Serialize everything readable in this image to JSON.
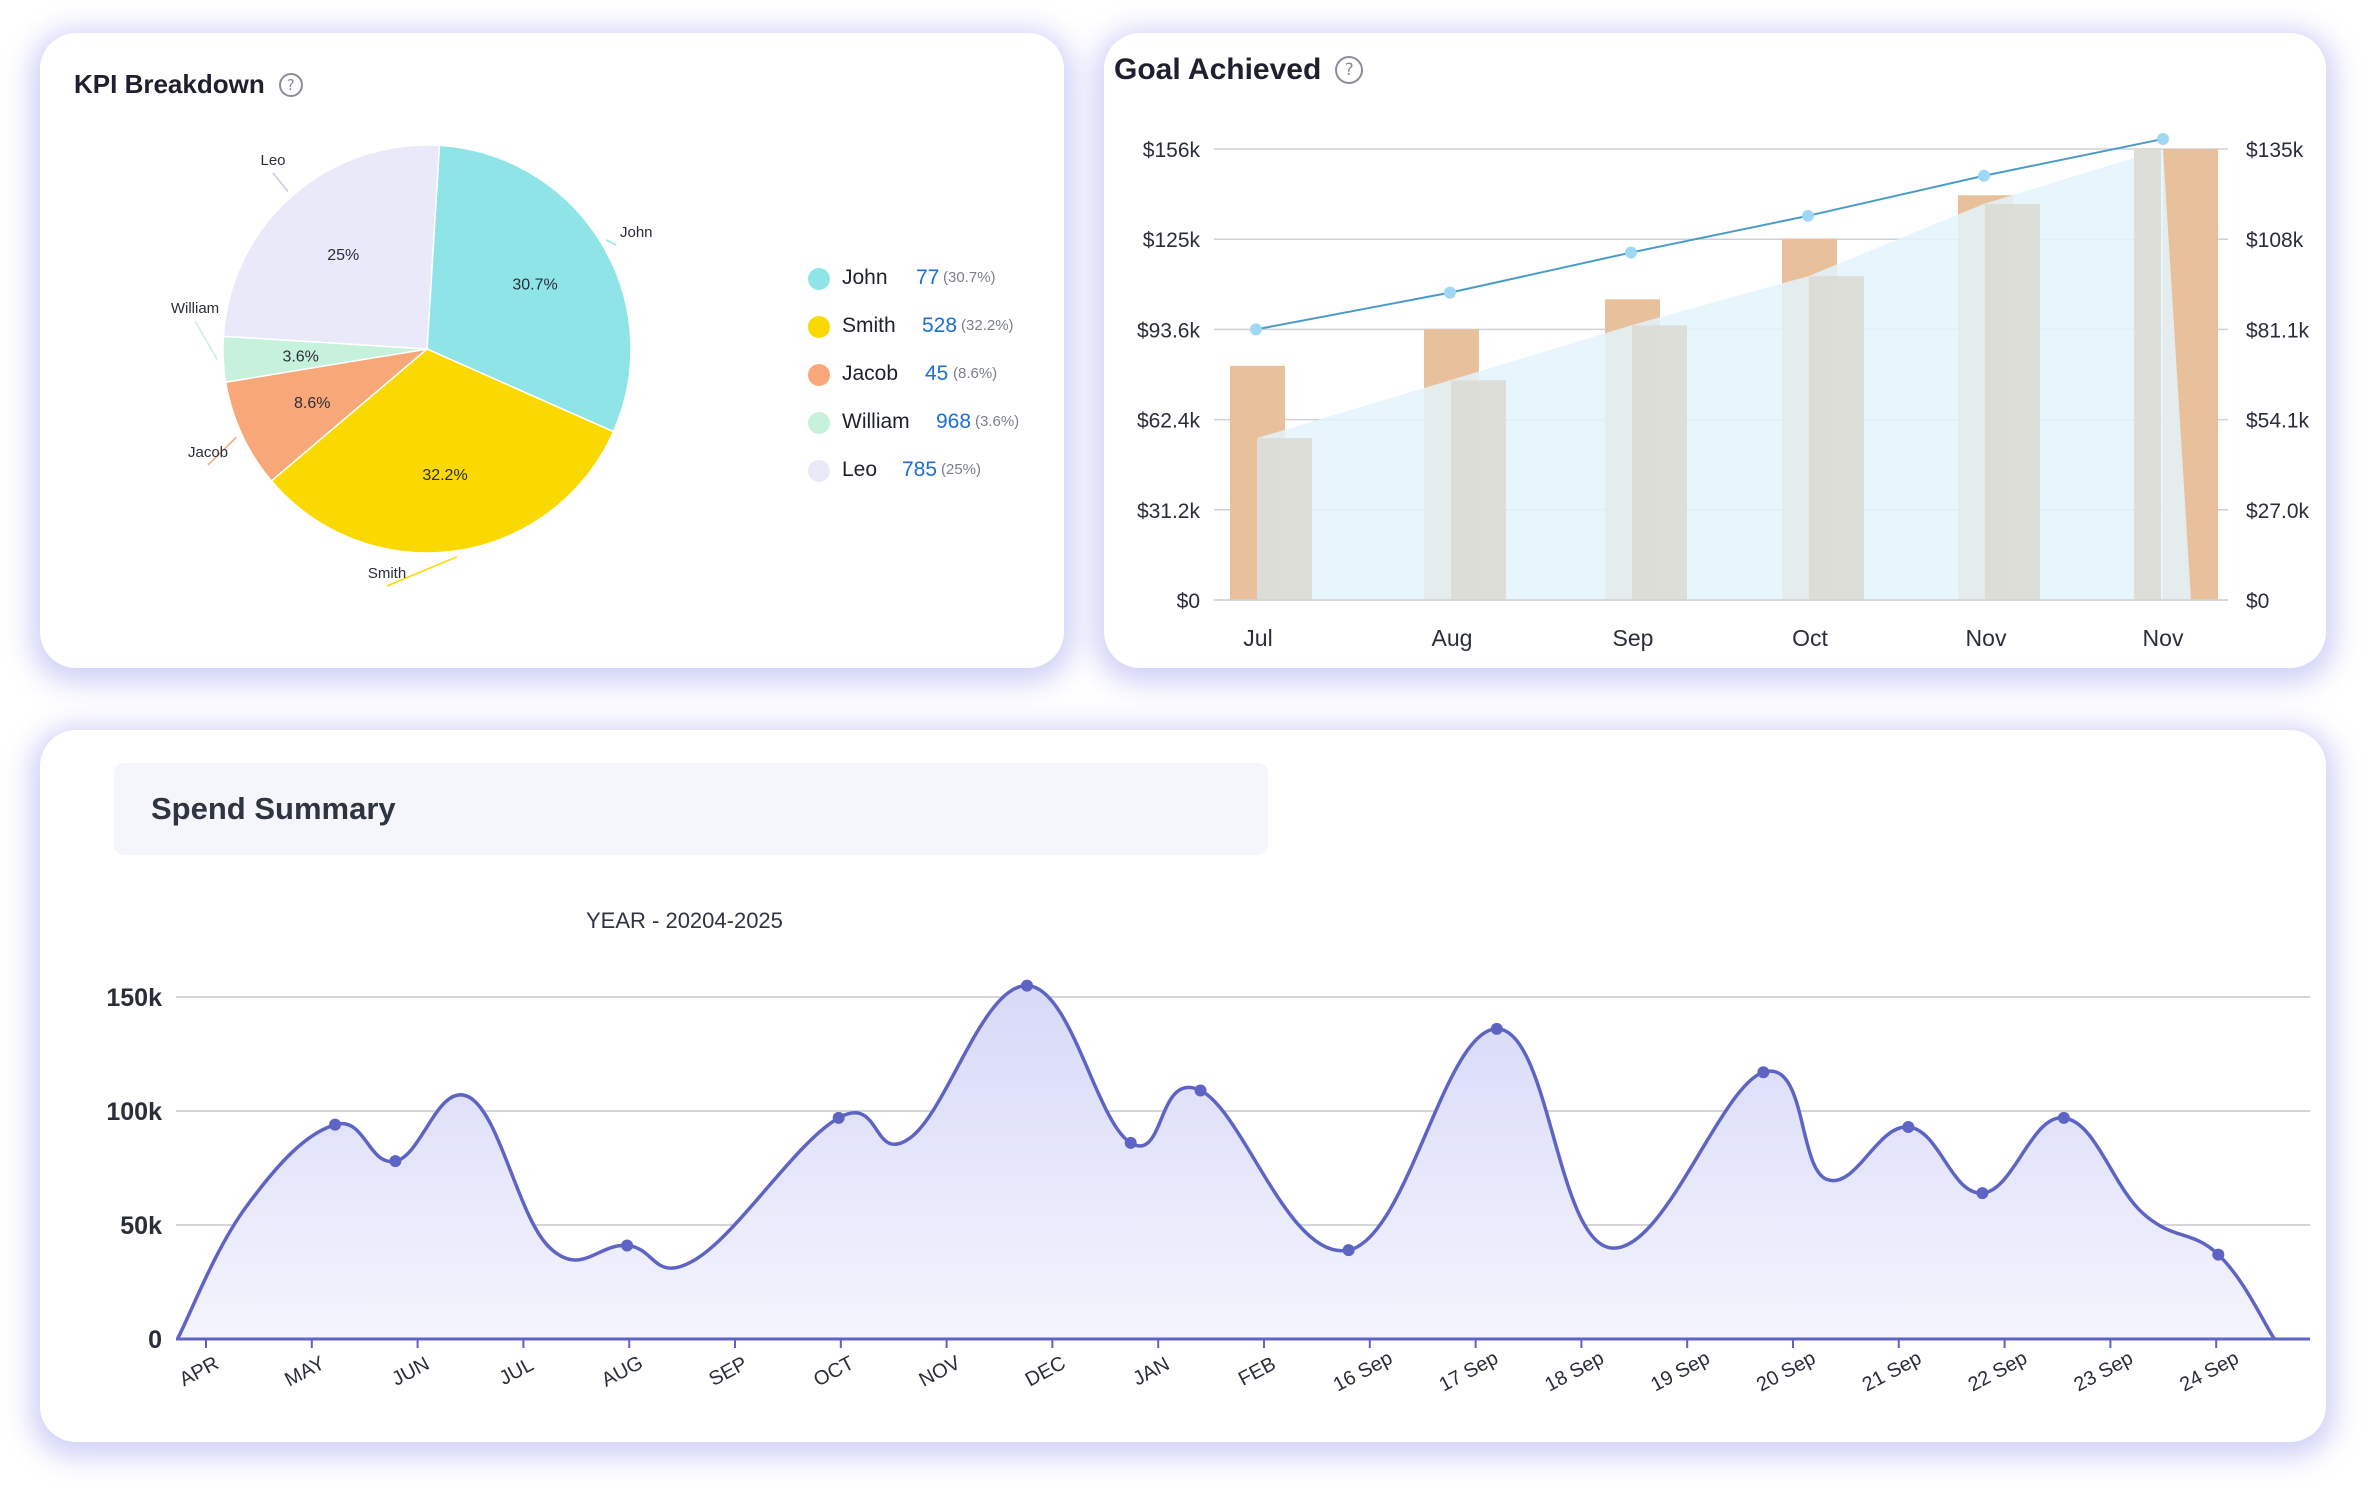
{
  "kpi": {
    "title": "KPI Breakdown",
    "legend": [
      {
        "name": "John",
        "value": "77",
        "pct": "(30.7%)",
        "color": "#8ee4e6"
      },
      {
        "name": "Smith",
        "value": "528",
        "pct": "(32.2%)",
        "color": "#fad900"
      },
      {
        "name": "Jacob",
        "value": "45",
        "pct": "(8.6%)",
        "color": "#f8a878"
      },
      {
        "name": "William",
        "value": "968",
        "pct": "(3.6%)",
        "color": "#c6f1dc"
      },
      {
        "name": "Leo",
        "value": "785",
        "pct": "(25%)",
        "color": "#e9e9f9"
      }
    ]
  },
  "goal": {
    "title": "Goal Achieved"
  },
  "spend": {
    "title": "Spend Summary",
    "subtitle": "YEAR - 20204-2025"
  },
  "chart_data": [
    {
      "type": "pie",
      "title": "KPI Breakdown",
      "slices": [
        {
          "label": "John",
          "value": 30.7,
          "text": "30.7%",
          "color": "#8ee4e6"
        },
        {
          "label": "Smith",
          "value": 32.2,
          "text": "32.2%",
          "color": "#fad900"
        },
        {
          "label": "Jacob",
          "value": 8.6,
          "text": "8.6%",
          "color": "#f8a878"
        },
        {
          "label": "William",
          "value": 3.6,
          "text": "3.6%",
          "color": "#c6f1dc"
        },
        {
          "label": "Leo",
          "value": 25,
          "text": "25%",
          "color": "#e9e9f9"
        }
      ]
    },
    {
      "type": "bar",
      "title": "Goal Achieved",
      "categories": [
        "Jul",
        "Aug",
        "Sep",
        "Oct",
        "Nov",
        "Nov"
      ],
      "y_left_ticks": [
        "$0",
        "$31.2k",
        "$62.4k",
        "$93.6k",
        "$125k",
        "$156k"
      ],
      "y_right_ticks": [
        "$0",
        "$27.0k",
        "$54.1k",
        "$81.1k",
        "$108k",
        "$135k"
      ],
      "ylim_left": [
        0,
        156000
      ],
      "ylim_right": [
        0,
        135000
      ],
      "grid": true,
      "series": [
        {
          "type": "bar",
          "axis": "left",
          "color": "#e8c19c",
          "values": [
            81000,
            93600,
            104000,
            125000,
            140000,
            156000
          ]
        },
        {
          "type": "bar",
          "axis": "left",
          "color": "#dcdcd6",
          "values": [
            56000,
            76000,
            95000,
            112000,
            137000,
            160000
          ]
        },
        {
          "type": "area",
          "axis": "left",
          "color": "#e3f3fc",
          "values": [
            56000,
            76000,
            95000,
            112000,
            137000,
            156000
          ]
        },
        {
          "type": "line",
          "axis": "right",
          "color": "#4a9cc6",
          "marker_color": "#9ed8f4",
          "values": [
            81000,
            92000,
            104000,
            115000,
            127000,
            138000
          ]
        }
      ]
    },
    {
      "type": "area",
      "title": "YEAR - 20204-2025",
      "x": [
        "APR",
        "MAY",
        "JUN",
        "JUL",
        "AUG",
        "SEP",
        "OCT",
        "NOV",
        "DEC",
        "JAN",
        "FEB",
        "16 Sep",
        "17 Sep",
        "18 Sep",
        "19 Sep",
        "20 Sep",
        "21 Sep",
        "22 Sep",
        "23 Sep",
        "24 Sep"
      ],
      "y_ticks": [
        "0",
        "50k",
        "100k",
        "150k"
      ],
      "ylim": [
        0,
        150000
      ],
      "grid": true,
      "series": [
        {
          "color": "#5e64c4",
          "curve": [
            {
              "x": -0.27,
              "y": 0
            },
            {
              "x": 0.38,
              "y": 58000
            },
            {
              "x": 1.22,
              "y": 94000
            },
            {
              "x": 1.79,
              "y": 78000
            },
            {
              "x": 2.49,
              "y": 106000
            },
            {
              "x": 3.25,
              "y": 40000
            },
            {
              "x": 3.98,
              "y": 41000
            },
            {
              "x": 4.63,
              "y": 35000
            },
            {
              "x": 5.98,
              "y": 97000
            },
            {
              "x": 6.65,
              "y": 88000
            },
            {
              "x": 7.76,
              "y": 155000
            },
            {
              "x": 8.74,
              "y": 86000
            },
            {
              "x": 9.4,
              "y": 109000
            },
            {
              "x": 10.8,
              "y": 39000
            },
            {
              "x": 12.2,
              "y": 136000
            },
            {
              "x": 13.27,
              "y": 40000
            },
            {
              "x": 14.72,
              "y": 117000
            },
            {
              "x": 15.32,
              "y": 70000
            },
            {
              "x": 16.09,
              "y": 93000
            },
            {
              "x": 16.79,
              "y": 64000
            },
            {
              "x": 17.56,
              "y": 97000
            },
            {
              "x": 18.31,
              "y": 55000
            },
            {
              "x": 19.02,
              "y": 37000
            },
            {
              "x": 19.55,
              "y": 0
            }
          ],
          "markers": [
            {
              "x": 1.22,
              "y": 94000
            },
            {
              "x": 1.79,
              "y": 78000
            },
            {
              "x": 3.98,
              "y": 41000
            },
            {
              "x": 5.98,
              "y": 97000
            },
            {
              "x": 7.76,
              "y": 155000
            },
            {
              "x": 8.74,
              "y": 86000
            },
            {
              "x": 9.4,
              "y": 109000
            },
            {
              "x": 10.8,
              "y": 39000
            },
            {
              "x": 12.2,
              "y": 136000
            },
            {
              "x": 14.72,
              "y": 117000
            },
            {
              "x": 16.09,
              "y": 93000
            },
            {
              "x": 16.79,
              "y": 64000
            },
            {
              "x": 17.56,
              "y": 97000
            },
            {
              "x": 19.02,
              "y": 37000
            }
          ]
        }
      ]
    }
  ]
}
